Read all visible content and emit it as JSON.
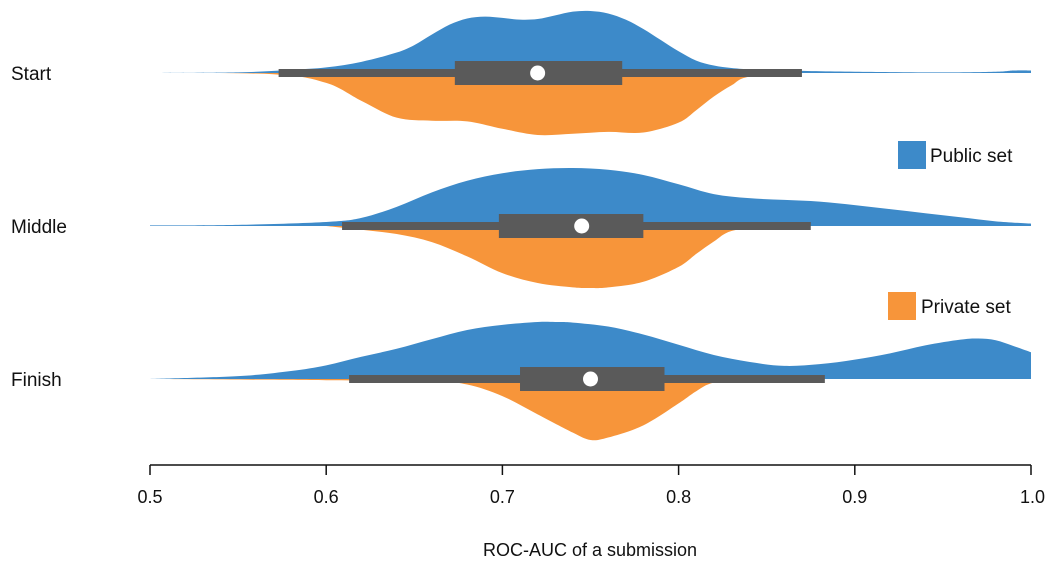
{
  "chart_data": {
    "type": "split-violin",
    "orientation": "horizontal",
    "xlabel": "ROC-AUC of a submission",
    "xlim": [
      0.5,
      1.0
    ],
    "xticks": [
      0.5,
      0.6,
      0.7,
      0.8,
      0.9,
      1.0
    ],
    "xtick_labels": [
      "0.5",
      "0.6",
      "0.7",
      "0.8",
      "0.9",
      "1.0"
    ],
    "categories": [
      "Start",
      "Middle",
      "Finish"
    ],
    "legend": {
      "placement": "right",
      "entries": [
        {
          "key": "public",
          "label": "Public set",
          "color": "#3d8ac9"
        },
        {
          "key": "private",
          "label": "Private set",
          "color": "#f7953a"
        }
      ]
    },
    "series": [
      {
        "category": "Start",
        "public_density": {
          "x": [
            0.5,
            0.55,
            0.58,
            0.6,
            0.62,
            0.64,
            0.65,
            0.66,
            0.67,
            0.68,
            0.69,
            0.7,
            0.71,
            0.72,
            0.73,
            0.74,
            0.75,
            0.76,
            0.77,
            0.78,
            0.79,
            0.8,
            0.81,
            0.82,
            0.83,
            0.84,
            0.86,
            0.9,
            0.95,
            0.98,
            0.99,
            1.0
          ],
          "y": [
            0.0,
            0.01,
            0.05,
            0.09,
            0.18,
            0.33,
            0.45,
            0.62,
            0.78,
            0.88,
            0.91,
            0.89,
            0.86,
            0.87,
            0.93,
            0.99,
            1.0,
            0.96,
            0.86,
            0.71,
            0.53,
            0.35,
            0.2,
            0.12,
            0.08,
            0.06,
            0.04,
            0.02,
            0.01,
            0.02,
            0.04,
            0.04
          ]
        },
        "private_density": {
          "x": [
            0.5,
            0.57,
            0.6,
            0.62,
            0.64,
            0.66,
            0.68,
            0.7,
            0.72,
            0.74,
            0.76,
            0.78,
            0.8,
            0.81,
            0.82,
            0.83,
            0.84,
            0.87
          ],
          "y": [
            0.0,
            0.02,
            0.16,
            0.45,
            0.72,
            0.77,
            0.78,
            0.9,
            1.0,
            0.98,
            0.95,
            0.96,
            0.8,
            0.6,
            0.38,
            0.2,
            0.06,
            0.0
          ]
        },
        "box": {
          "whisker_low": 0.573,
          "q1": 0.673,
          "median": 0.72,
          "q3": 0.768,
          "whisker_high": 0.87
        }
      },
      {
        "category": "Middle",
        "public_density": {
          "x": [
            0.5,
            0.55,
            0.6,
            0.62,
            0.64,
            0.66,
            0.68,
            0.7,
            0.72,
            0.74,
            0.76,
            0.78,
            0.8,
            0.82,
            0.84,
            0.86,
            0.88,
            0.9,
            0.92,
            0.94,
            0.96,
            0.98,
            1.0
          ],
          "y": [
            0.01,
            0.02,
            0.07,
            0.14,
            0.33,
            0.58,
            0.78,
            0.91,
            0.98,
            1.0,
            0.97,
            0.88,
            0.72,
            0.55,
            0.48,
            0.45,
            0.42,
            0.36,
            0.29,
            0.22,
            0.15,
            0.08,
            0.04
          ]
        },
        "private_density": {
          "x": [
            0.6,
            0.62,
            0.64,
            0.66,
            0.68,
            0.7,
            0.72,
            0.74,
            0.75,
            0.76,
            0.78,
            0.8,
            0.81,
            0.82,
            0.83,
            0.85
          ],
          "y": [
            0.0,
            0.06,
            0.13,
            0.26,
            0.49,
            0.76,
            0.92,
            0.99,
            1.0,
            0.99,
            0.9,
            0.66,
            0.45,
            0.25,
            0.08,
            0.0
          ]
        },
        "box": {
          "whisker_low": 0.609,
          "q1": 0.698,
          "median": 0.745,
          "q3": 0.78,
          "whisker_high": 0.875
        }
      },
      {
        "category": "Finish",
        "public_density": {
          "x": [
            0.5,
            0.55,
            0.58,
            0.6,
            0.62,
            0.64,
            0.66,
            0.68,
            0.7,
            0.72,
            0.73,
            0.74,
            0.76,
            0.78,
            0.8,
            0.82,
            0.84,
            0.86,
            0.88,
            0.9,
            0.92,
            0.94,
            0.96,
            0.97,
            0.98,
            0.99,
            1.0
          ],
          "y": [
            0.0,
            0.05,
            0.14,
            0.24,
            0.39,
            0.53,
            0.7,
            0.86,
            0.95,
            1.0,
            1.0,
            0.99,
            0.92,
            0.78,
            0.6,
            0.42,
            0.3,
            0.23,
            0.26,
            0.34,
            0.45,
            0.59,
            0.69,
            0.71,
            0.68,
            0.58,
            0.47
          ]
        },
        "private_density": {
          "x": [
            0.5,
            0.6,
            0.66,
            0.68,
            0.7,
            0.72,
            0.74,
            0.75,
            0.76,
            0.78,
            0.8,
            0.81,
            0.82,
            0.84
          ],
          "y": [
            0.0,
            0.02,
            0.04,
            0.09,
            0.28,
            0.58,
            0.88,
            1.0,
            0.96,
            0.76,
            0.4,
            0.2,
            0.06,
            0.0
          ]
        },
        "box": {
          "whisker_low": 0.613,
          "q1": 0.71,
          "median": 0.75,
          "q3": 0.792,
          "whisker_high": 0.883
        }
      }
    ]
  }
}
